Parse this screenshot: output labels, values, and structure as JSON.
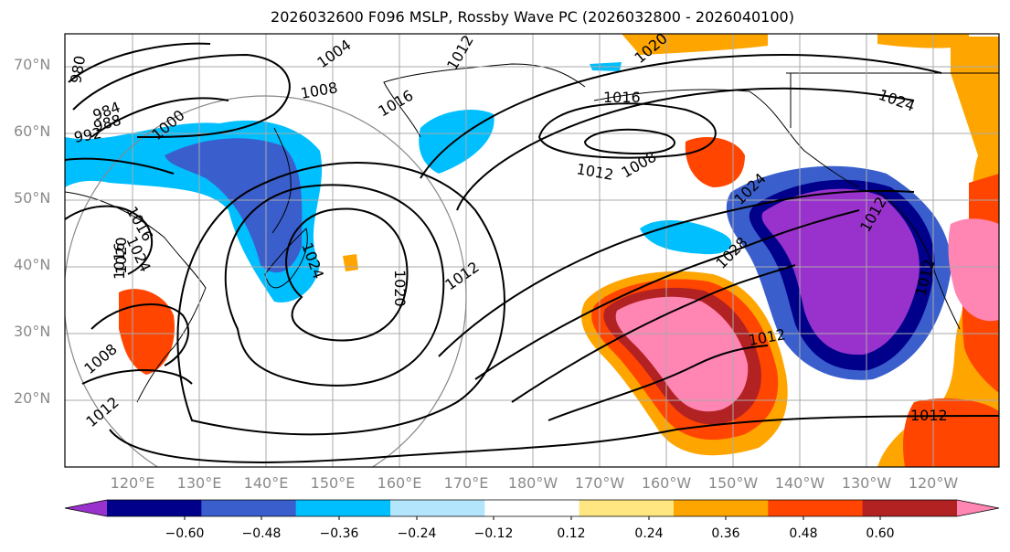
{
  "title": "2026032600 F096 MSLP, Rossby Wave PC (2026032800 - 2026040100)",
  "map": {
    "lat_labels": [
      "70°N",
      "60°N",
      "50°N",
      "40°N",
      "30°N",
      "20°N"
    ],
    "lon_labels": [
      "120°E",
      "130°E",
      "140°E",
      "150°E",
      "160°E",
      "170°E",
      "180°W",
      "170°W",
      "160°W",
      "150°W",
      "140°W",
      "130°W",
      "120°W"
    ],
    "isobar_labels": [
      "980",
      "984",
      "988",
      "992",
      "1000",
      "1004",
      "1008",
      "1012",
      "1016",
      "1020",
      "1024",
      "1008",
      "1016",
      "1012",
      "1016",
      "1020",
      "1012",
      "1020",
      "1024",
      "1008",
      "1012",
      "1016",
      "1024",
      "1012",
      "1012",
      "1024",
      "1028",
      "1012",
      "1012"
    ],
    "land_color": "#000000",
    "grid_color": "#aaaaaa"
  },
  "colorbar": {
    "ticks": [
      "−0.60",
      "−0.48",
      "−0.36",
      "−0.24",
      "−0.12",
      "0.12",
      "0.24",
      "0.36",
      "0.48",
      "0.60"
    ],
    "colors": [
      "#9932cc",
      "#00008b",
      "#3a5fcd",
      "#00bfff",
      "#b3e5fc",
      "#ffffff",
      "#ffe680",
      "#ffa500",
      "#ff4500",
      "#b22222",
      "#ff85b3"
    ]
  }
}
